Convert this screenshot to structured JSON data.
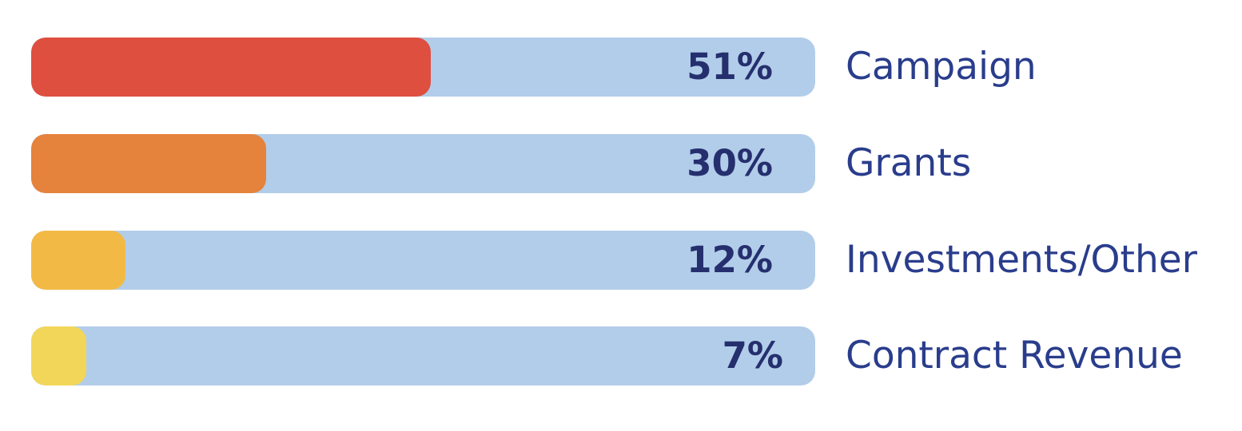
{
  "colors": {
    "track": "#b2cde9",
    "label_text": "#2a3d8c",
    "value_text": "#252f6e"
  },
  "chart_data": {
    "type": "bar",
    "orientation": "horizontal",
    "categories": [
      "Campaign",
      "Grants",
      "Investments/Other",
      "Contract Revenue"
    ],
    "values": [
      51,
      30,
      12,
      7
    ],
    "value_labels": [
      "51%",
      "30%",
      "12%",
      "7%"
    ],
    "value_unit": "%",
    "xlim": [
      0,
      100
    ],
    "bar_colors": [
      "#de4f40",
      "#e5823c",
      "#f2ba45",
      "#f2d659"
    ],
    "legend": "none",
    "grid": false
  }
}
